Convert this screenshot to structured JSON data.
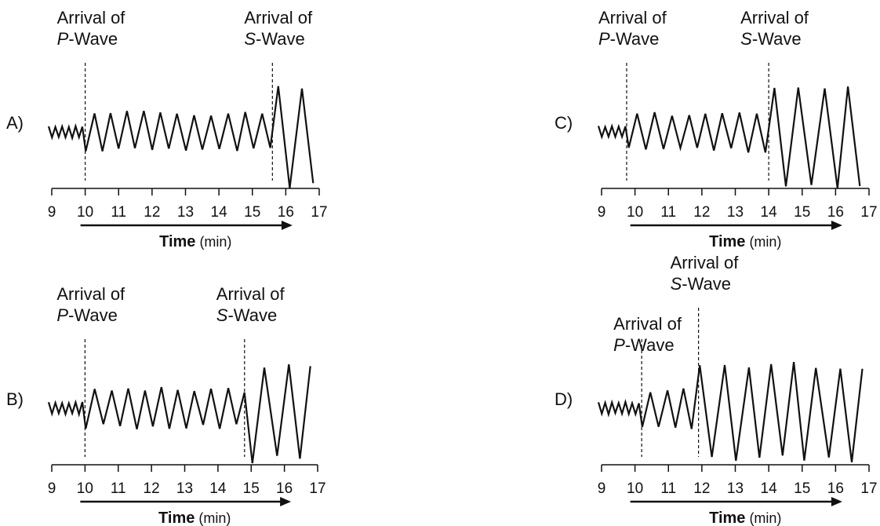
{
  "options": [
    {
      "letter": "A)",
      "p_arrival_min": 10.0,
      "s_arrival_min": 15.6,
      "p_label_line1": "Arrival of",
      "p_label_word": "P",
      "p_label_rest": "-Wave",
      "s_label_line1": "Arrival of",
      "s_label_word": "S",
      "s_label_rest": "-Wave"
    },
    {
      "letter": "B)",
      "p_arrival_min": 10.0,
      "s_arrival_min": 14.8,
      "p_label_line1": "Arrival of",
      "p_label_word": "P",
      "p_label_rest": "-Wave",
      "s_label_line1": "Arrival of",
      "s_label_word": "S",
      "s_label_rest": "-Wave"
    },
    {
      "letter": "C)",
      "p_arrival_min": 9.75,
      "s_arrival_min": 14.0,
      "p_label_line1": "Arrival of",
      "p_label_word": "P",
      "p_label_rest": "-Wave",
      "s_label_line1": "Arrival of",
      "s_label_word": "S",
      "s_label_rest": "-Wave"
    },
    {
      "letter": "D)",
      "p_arrival_min": 10.2,
      "s_arrival_min": 11.9,
      "p_label_line1": "Arrival of",
      "p_label_word": "P",
      "p_label_rest": "-Wave",
      "s_label_line1": "Arrival of",
      "s_label_word": "S",
      "s_label_rest": "-Wave"
    }
  ],
  "axis": {
    "ticks": [
      "9",
      "10",
      "11",
      "12",
      "13",
      "14",
      "15",
      "16",
      "17"
    ],
    "min": 9,
    "max": 17,
    "label_bold": "Time",
    "label_unit": " (min)"
  },
  "colors": {
    "ink": "#111111",
    "background": "#ffffff"
  }
}
